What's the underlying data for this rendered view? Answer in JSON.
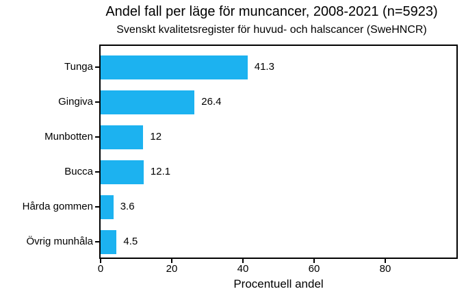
{
  "chart_data": {
    "type": "bar",
    "orientation": "horizontal",
    "title": "Andel fall per läge för muncancer, 2008-2021 (n=5923)",
    "subtitle": "Svenskt kvalitetsregister för huvud- och halscancer (SweHNCR)",
    "xlabel": "Procentuell andel",
    "ylabel": "",
    "categories": [
      "Tunga",
      "Gingiva",
      "Munbotten",
      "Bucca",
      "Hårda gommen",
      "Övrig munhåla"
    ],
    "values": [
      41.3,
      26.4,
      12,
      12.1,
      3.6,
      4.5
    ],
    "value_labels": [
      "41.3",
      "26.4",
      "12",
      "12.1",
      "3.6",
      "4.5"
    ],
    "xlim": [
      0,
      100
    ],
    "xticks": [
      0,
      20,
      40,
      60,
      80
    ],
    "xtick_labels": [
      "0",
      "20",
      "40",
      "60",
      "80"
    ],
    "bar_color": "#1CB2F0",
    "axis_color": "#000000",
    "text_color": "#000000",
    "background_color": "#ffffff",
    "grid": false,
    "legend": "none"
  }
}
